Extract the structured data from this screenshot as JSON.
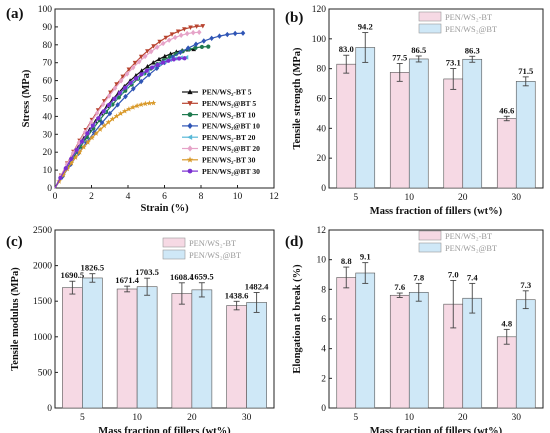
{
  "chart_data": [
    {
      "panel": "(a)",
      "type": "line",
      "xlabel": "Strain (%)",
      "ylabel": "Stress (MPa)",
      "xlim": [
        0,
        12
      ],
      "ylim": [
        0,
        100
      ],
      "xticks": [
        "0",
        "2",
        "4",
        "6",
        "8",
        "10",
        "12"
      ],
      "yticks": [
        "0",
        "10",
        "20",
        "30",
        "40",
        "50",
        "60",
        "70",
        "80",
        "90",
        "100"
      ],
      "legend_position": "bottom-right",
      "series": [
        {
          "name": "PEN/WS₂-BT 5",
          "color": "#111111",
          "marker": "triangle-up",
          "end_x": 7.6,
          "end_y": 77.5
        },
        {
          "name": "PEN/WS₂@BT 5",
          "color": "#b8432f",
          "marker": "triangle-down",
          "end_x": 8.1,
          "end_y": 90.5
        },
        {
          "name": "PEN/WS₂-BT 10",
          "color": "#1f7a4f",
          "marker": "circle",
          "end_x": 8.4,
          "end_y": 79.0
        },
        {
          "name": "PEN/WS₂@BT 10",
          "color": "#2f55b5",
          "marker": "diamond",
          "end_x": 10.3,
          "end_y": 86.5
        },
        {
          "name": "PEN/WS₂-BT 20",
          "color": "#59b9d8",
          "marker": "triangle-left",
          "end_x": 7.2,
          "end_y": 73.0
        },
        {
          "name": "PEN/WS₂@BT 20",
          "color": "#e6a3c8",
          "marker": "diamond",
          "end_x": 7.9,
          "end_y": 87.0
        },
        {
          "name": "PEN/WS₂-BT 30",
          "color": "#d99a2b",
          "marker": "star",
          "end_x": 5.4,
          "end_y": 47.5
        },
        {
          "name": "PEN/WS₂@BT 30",
          "color": "#7a2fd1",
          "marker": "circle",
          "end_x": 7.1,
          "end_y": 72.5
        }
      ]
    },
    {
      "panel": "(b)",
      "type": "bar",
      "xlabel": "Mass fraction of  fillers (wt%)",
      "ylabel": "Tensile strength (MPa)",
      "ylim": [
        0,
        120
      ],
      "yticks": [
        "0",
        "20",
        "40",
        "60",
        "80",
        "100",
        "120"
      ],
      "categories": [
        "5",
        "10",
        "20",
        "30"
      ],
      "legend_position": "top-right",
      "series": [
        {
          "name": "PEN/WS₂-BT",
          "color": "#f6d9e4",
          "values": [
            83.0,
            77.5,
            73.1,
            46.6
          ],
          "labels": [
            "83.0",
            "77.5",
            "73.1",
            "46.6"
          ],
          "errors": [
            6,
            6,
            7,
            1.5
          ]
        },
        {
          "name": "PEN/WS₂@BT",
          "color": "#cfe8f7",
          "values": [
            94.2,
            86.5,
            86.3,
            71.5
          ],
          "labels": [
            "94.2",
            "86.5",
            "86.3",
            "71.5"
          ],
          "errors": [
            10,
            2,
            2,
            3
          ]
        }
      ]
    },
    {
      "panel": "(c)",
      "type": "bar",
      "xlabel": "Mass fraction of  fillers (wt%)",
      "ylabel": "Tensile modulus (MPa)",
      "ylim": [
        0,
        2500
      ],
      "yticks": [
        "0",
        "500",
        "1000",
        "1500",
        "2000",
        "2500"
      ],
      "categories": [
        "5",
        "10",
        "20",
        "30"
      ],
      "legend_position": "top-right",
      "series": [
        {
          "name": "PEN/WS₂-BT",
          "color": "#f6d9e4",
          "values": [
            1690.5,
            1671.4,
            1608.4,
            1438.6
          ],
          "labels": [
            "1690.5",
            "1671.4",
            "1608.4",
            "1438.6"
          ],
          "errors": [
            90,
            40,
            150,
            60
          ]
        },
        {
          "name": "PEN/WS₂@BT",
          "color": "#cfe8f7",
          "values": [
            1826.5,
            1703.5,
            1659.5,
            1482.4
          ],
          "labels": [
            "1826.5",
            "1703.5",
            "1659.5",
            "1482.4"
          ],
          "errors": [
            60,
            120,
            100,
            140
          ]
        }
      ]
    },
    {
      "panel": "(d)",
      "type": "bar",
      "xlabel": "Mass fraction of  fillers (wt%)",
      "ylabel": "Elongation at break (%)",
      "ylim": [
        0,
        12
      ],
      "yticks": [
        "0",
        "2",
        "4",
        "6",
        "8",
        "10",
        "12"
      ],
      "categories": [
        "5",
        "10",
        "20",
        "30"
      ],
      "legend_position": "top-right",
      "series": [
        {
          "name": "PEN/WS₂-BT",
          "color": "#f6d9e4",
          "values": [
            8.8,
            7.6,
            7.0,
            4.8
          ],
          "labels": [
            "8.8",
            "7.6",
            "7.0",
            "4.8"
          ],
          "errors": [
            0.7,
            0.15,
            1.6,
            0.5
          ]
        },
        {
          "name": "PEN/WS₂@BT",
          "color": "#cfe8f7",
          "values": [
            9.1,
            7.8,
            7.4,
            7.3
          ],
          "labels": [
            "9.1",
            "7.8",
            "7.4",
            "7.3"
          ],
          "errors": [
            0.7,
            0.6,
            1.0,
            0.6
          ]
        }
      ]
    }
  ]
}
